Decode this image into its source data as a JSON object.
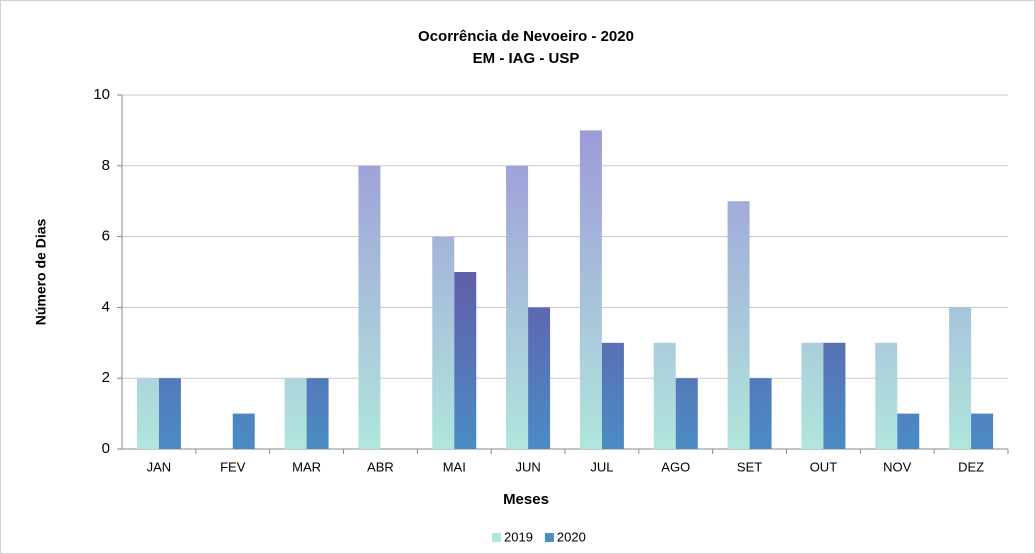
{
  "chart_data": {
    "type": "bar",
    "title": "Ocorrência de Nevoeiro - 2020",
    "subtitle": "EM - IAG - USP",
    "y_label": "Número de Dias",
    "x_label": "Meses",
    "categories": [
      "JAN",
      "FEV",
      "MAR",
      "ABR",
      "MAI",
      "JUN",
      "JUL",
      "AGO",
      "SET",
      "OUT",
      "NOV",
      "DEZ"
    ],
    "series": [
      {
        "name": "2019",
        "color": "#9b92d8",
        "gradient": [
          "#9b92d8",
          "#b0e6dc"
        ],
        "values": [
          2,
          0,
          2,
          8,
          6,
          8,
          9,
          3,
          7,
          3,
          3,
          4
        ]
      },
      {
        "name": "2020",
        "color": "#7a3090",
        "gradient": [
          "#7a3090",
          "#4a8cc4"
        ],
        "values": [
          2,
          1,
          2,
          0,
          5,
          4,
          3,
          2,
          2,
          3,
          1,
          1
        ]
      }
    ],
    "ylim": [
      0,
      10
    ],
    "yticks": [
      0,
      2,
      4,
      6,
      8,
      10
    ],
    "grid": true,
    "legend": "bottom"
  }
}
